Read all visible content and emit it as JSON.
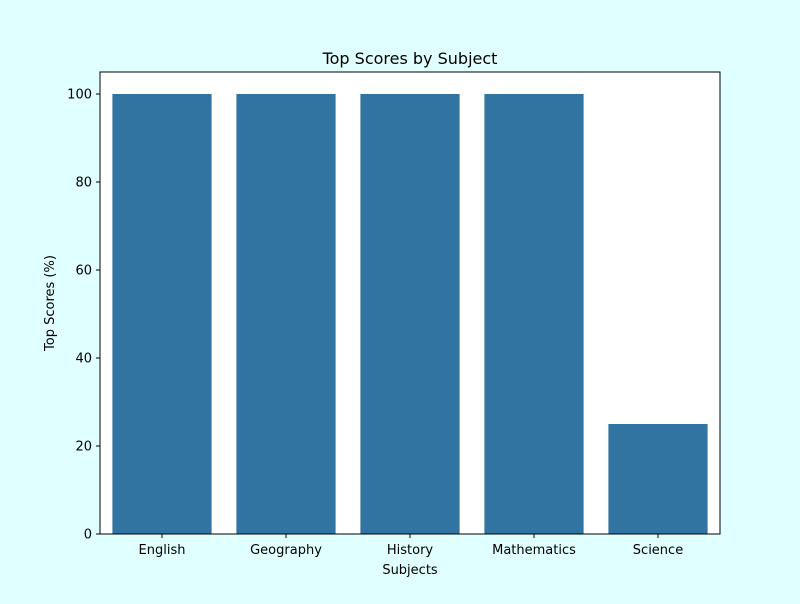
{
  "chart_data": {
    "type": "bar",
    "title": "Top Scores by Subject",
    "xlabel": "Subjects",
    "ylabel": "Top Scores (%)",
    "categories": [
      "English",
      "Geography",
      "History",
      "Mathematics",
      "Science"
    ],
    "values": [
      100,
      100,
      100,
      100,
      25
    ],
    "ylim": [
      0,
      105
    ],
    "yticks": [
      0,
      20,
      40,
      60,
      80,
      100
    ],
    "grid": false,
    "bar_color": "#3274a1",
    "plot_background": "#ffffff",
    "figure_background": "#e0ffff"
  }
}
